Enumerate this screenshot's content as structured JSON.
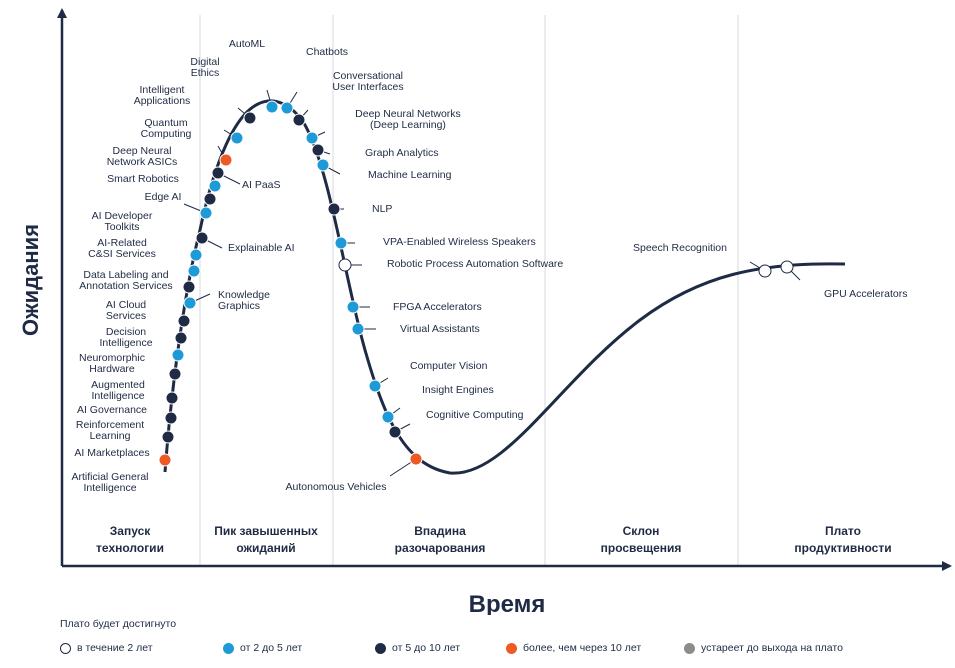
{
  "chart_data": {
    "type": "line",
    "xlabel": "Время",
    "ylabel": "Ожидания",
    "colors": {
      "curve": "#1f2a44",
      "under_2": "#ffffff",
      "2_to_5": "#1e9bd7",
      "5_to_10": "#1f2a44",
      "over_10": "#ee5a24",
      "obsolete": "#8c8c8c"
    },
    "phases": [
      {
        "line1": "Запуск",
        "line2": "технологии"
      },
      {
        "line1": "Пик завышенных",
        "line2": "ожиданий"
      },
      {
        "line1": "Впадина",
        "line2": "разочарования"
      },
      {
        "line1": "Склон",
        "line2": "просвещения"
      },
      {
        "line1": "Плато",
        "line2": "продуктивности"
      }
    ],
    "technologies": [
      {
        "lines": [
          "Artificial General",
          "Intelligence"
        ],
        "category": "over_10"
      },
      {
        "lines": [
          "AI Marketplaces"
        ],
        "category": "5_to_10"
      },
      {
        "lines": [
          "Reinforcement",
          "Learning"
        ],
        "category": "5_to_10"
      },
      {
        "lines": [
          "AI Governance"
        ],
        "category": "5_to_10"
      },
      {
        "lines": [
          "Augmented",
          "Intelligence"
        ],
        "category": "5_to_10"
      },
      {
        "lines": [
          "Neuromorphic",
          "Hardware"
        ],
        "category": "2_to_5"
      },
      {
        "lines": [
          "Decision",
          "Intelligence"
        ],
        "category": "5_to_10"
      },
      {
        "lines": [
          "AI Cloud",
          "Services"
        ],
        "category": "5_to_10"
      },
      {
        "lines": [
          "Knowledge",
          "Graphics"
        ],
        "category": "2_to_5"
      },
      {
        "lines": [
          "Data Labeling and",
          "Annotation Services"
        ],
        "category": "5_to_10"
      },
      {
        "lines": [
          "AI-Related",
          "C&SI Services"
        ],
        "category": "2_to_5"
      },
      {
        "lines": [
          "AI Developer",
          "Toolkits"
        ],
        "category": "2_to_5"
      },
      {
        "lines": [
          "Explainable AI"
        ],
        "category": "5_to_10"
      },
      {
        "lines": [
          "Edge AI"
        ],
        "category": "2_to_5"
      },
      {
        "lines": [
          "Smart Robotics"
        ],
        "category": "5_to_10"
      },
      {
        "lines": [
          "Deep Neural",
          "Network ASICs"
        ],
        "category": "2_to_5"
      },
      {
        "lines": [
          "AI PaaS"
        ],
        "category": "5_to_10"
      },
      {
        "lines": [
          "Quantum",
          "Computing"
        ],
        "category": "over_10"
      },
      {
        "lines": [
          "Intelligent",
          "Applications"
        ],
        "category": "2_to_5"
      },
      {
        "lines": [
          "Digital",
          "Ethics"
        ],
        "category": "5_to_10"
      },
      {
        "lines": [
          "AutoML"
        ],
        "category": "2_to_5"
      },
      {
        "lines": [
          "Chatbots"
        ],
        "category": "2_to_5"
      },
      {
        "lines": [
          "Conversational",
          "User Interfaces"
        ],
        "category": "5_to_10"
      },
      {
        "lines": [
          "Deep Neural Networks",
          "(Deep Learning)"
        ],
        "category": "2_to_5"
      },
      {
        "lines": [
          "Graph Analytics"
        ],
        "category": "5_to_10"
      },
      {
        "lines": [
          "Machine Learning"
        ],
        "category": "2_to_5"
      },
      {
        "lines": [
          "NLP"
        ],
        "category": "5_to_10"
      },
      {
        "lines": [
          "VPA-Enabled Wireless Speakers"
        ],
        "category": "2_to_5"
      },
      {
        "lines": [
          "Robotic Process Automation Software"
        ],
        "category": "under_2"
      },
      {
        "lines": [
          "FPGA Accelerators"
        ],
        "category": "2_to_5"
      },
      {
        "lines": [
          "Virtual Assistants"
        ],
        "category": "2_to_5"
      },
      {
        "lines": [
          "Computer Vision"
        ],
        "category": "2_to_5"
      },
      {
        "lines": [
          "Insight Engines"
        ],
        "category": "2_to_5"
      },
      {
        "lines": [
          "Cognitive Computing"
        ],
        "category": "5_to_10"
      },
      {
        "lines": [
          "Autonomous Vehicles"
        ],
        "category": "over_10"
      },
      {
        "lines": [
          "Speech Recognition"
        ],
        "category": "under_2"
      },
      {
        "lines": [
          "GPU Accelerators"
        ],
        "category": "under_2"
      }
    ]
  },
  "legend": {
    "title": "Плато будет достигнуто",
    "items": [
      {
        "label": "в течение 2 лет",
        "category": "under_2"
      },
      {
        "label": "от 2 до 5 лет",
        "category": "2_to_5"
      },
      {
        "label": "от 5 до 10 лет",
        "category": "5_to_10"
      },
      {
        "label": "более, чем через 10 лет",
        "category": "over_10"
      },
      {
        "label": "устареет до выхода на плато",
        "category": "obsolete"
      }
    ]
  }
}
